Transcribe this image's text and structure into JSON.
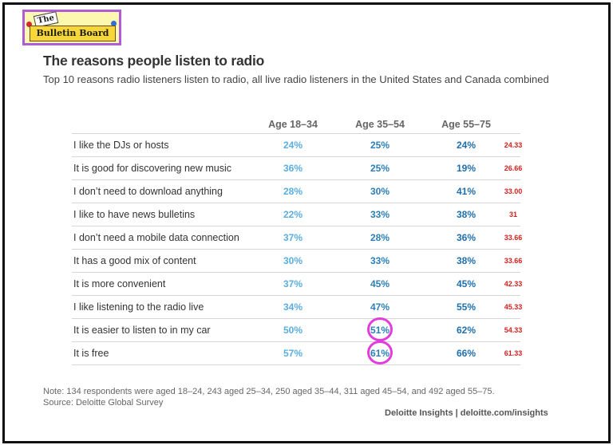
{
  "logo": {
    "the": "The",
    "name": "Bulletin Board"
  },
  "chart_data": {
    "type": "table",
    "title": "The reasons people listen to radio",
    "subtitle": "Top 10 reasons radio listeners listen to radio, all live radio listeners in the United States and Canada combined",
    "columns": [
      "Age 18–34",
      "Age 35–54",
      "Age 55–75"
    ],
    "rows": [
      {
        "reason": "I like the DJs or hosts",
        "values": [
          "24%",
          "25%",
          "24%"
        ],
        "average": "24.33"
      },
      {
        "reason": "It is good for discovering new music",
        "values": [
          "36%",
          "25%",
          "19%"
        ],
        "average": "26.66"
      },
      {
        "reason": "I don’t need to download anything",
        "values": [
          "28%",
          "30%",
          "41%"
        ],
        "average": "33.00"
      },
      {
        "reason": "I like to have news bulletins",
        "values": [
          "22%",
          "33%",
          "38%"
        ],
        "average": "31"
      },
      {
        "reason": "I don’t need a mobile data connection",
        "values": [
          "37%",
          "28%",
          "36%"
        ],
        "average": "33.66"
      },
      {
        "reason": "It has a good mix of content",
        "values": [
          "30%",
          "33%",
          "38%"
        ],
        "average": "33.66"
      },
      {
        "reason": "It is more convenient",
        "values": [
          "37%",
          "45%",
          "45%"
        ],
        "average": "42.33"
      },
      {
        "reason": "I like listening to the radio live",
        "values": [
          "34%",
          "47%",
          "55%"
        ],
        "average": "45.33"
      },
      {
        "reason": "It is easier to listen to in my car",
        "values": [
          "50%",
          "51%",
          "62%"
        ],
        "average": "54.33"
      },
      {
        "reason": "It is free",
        "values": [
          "57%",
          "61%",
          "66%"
        ],
        "average": "61.33"
      }
    ],
    "highlighted_cells": [
      {
        "row": 8,
        "column": "Age 35–54"
      },
      {
        "row": 9,
        "column": "Age 35–54"
      }
    ],
    "colors": {
      "age_18_34": "#5aaee0",
      "age_35_54": "#2b7fb8",
      "age_55_75": "#1f6fae",
      "average": "#d4221f",
      "highlight": "#e23ddc"
    }
  },
  "footer": {
    "note": "Note: 134 respondents were aged 18–24, 243 aged 25–34, 250 aged 35–44, 311 aged 45–54, and 492 aged 55–75.",
    "source": "Source: Deloitte Global Survey",
    "brand": "Deloitte Insights | deloitte.com/insights"
  }
}
